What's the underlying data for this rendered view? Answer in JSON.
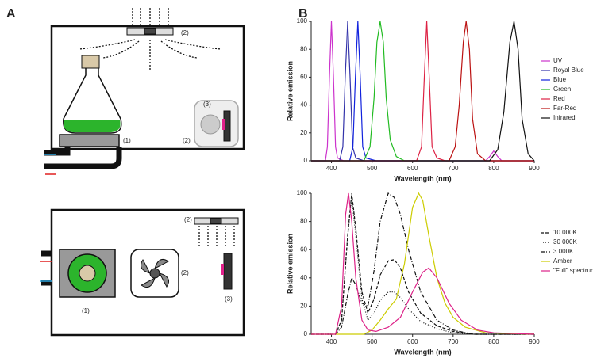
{
  "panels": {
    "a": "A",
    "b": "B"
  },
  "diagram": {
    "top": {
      "stirrer": "(1)",
      "fan": "(2)",
      "box": "(2)",
      "heater": "(3)"
    },
    "bottom": {
      "fan": "(2)",
      "stirrer": "(1)",
      "box": "(2)",
      "heater": "(3)"
    }
  },
  "chart_data": [
    {
      "type": "line",
      "xlabel": "Wavelength (nm)",
      "ylabel": "Relative emission",
      "xlim": [
        350,
        900
      ],
      "ylim": [
        0,
        100
      ],
      "xticks": [
        400,
        500,
        600,
        700,
        800,
        900
      ],
      "yticks": [
        0,
        20,
        40,
        60,
        80,
        100
      ],
      "legend": "right",
      "series": [
        {
          "name": "UV",
          "color": "#cc33cc",
          "dash": "solid",
          "x": [
            350,
            385,
            390,
            395,
            400,
            405,
            410,
            415,
            430,
            780,
            790,
            800,
            810,
            820,
            900
          ],
          "values": [
            0,
            0,
            10,
            60,
            100,
            60,
            10,
            2,
            0,
            0,
            3,
            7,
            3,
            0,
            0
          ]
        },
        {
          "name": "Royal Blue",
          "color": "#3333aa",
          "dash": "solid",
          "x": [
            350,
            420,
            428,
            434,
            440,
            446,
            452,
            460,
            480,
            900
          ],
          "values": [
            0,
            0,
            10,
            60,
            100,
            60,
            10,
            2,
            0,
            0
          ]
        },
        {
          "name": "Blue",
          "color": "#1122dd",
          "dash": "solid",
          "x": [
            350,
            445,
            453,
            459,
            465,
            471,
            477,
            485,
            510,
            900
          ],
          "values": [
            0,
            0,
            10,
            60,
            100,
            60,
            10,
            2,
            0,
            0
          ]
        },
        {
          "name": "Green",
          "color": "#22bb22",
          "dash": "solid",
          "x": [
            350,
            480,
            495,
            505,
            512,
            520,
            528,
            535,
            545,
            560,
            580,
            900
          ],
          "values": [
            0,
            0,
            10,
            45,
            85,
            100,
            85,
            45,
            15,
            3,
            0,
            0
          ]
        },
        {
          "name": "Red",
          "color": "#dd2244",
          "dash": "solid",
          "x": [
            350,
            610,
            622,
            629,
            635,
            641,
            648,
            660,
            680,
            900
          ],
          "values": [
            0,
            0,
            10,
            60,
            100,
            60,
            10,
            2,
            0,
            0
          ]
        },
        {
          "name": "Far-Red",
          "color": "#bb1111",
          "dash": "solid",
          "x": [
            350,
            690,
            705,
            715,
            725,
            732,
            740,
            748,
            760,
            780,
            900
          ],
          "values": [
            0,
            0,
            10,
            40,
            85,
            100,
            80,
            30,
            5,
            0,
            0
          ]
        },
        {
          "name": "Infrared",
          "color": "#111111",
          "dash": "solid",
          "x": [
            350,
            790,
            810,
            825,
            840,
            850,
            860,
            870,
            885,
            900
          ],
          "values": [
            0,
            0,
            8,
            35,
            85,
            100,
            80,
            30,
            5,
            0
          ]
        }
      ]
    },
    {
      "type": "line",
      "xlabel": "Wavelength (nm)",
      "ylabel": "Relative emission",
      "xlim": [
        350,
        900
      ],
      "ylim": [
        0,
        100
      ],
      "xticks": [
        400,
        500,
        600,
        700,
        800,
        900
      ],
      "yticks": [
        0,
        20,
        40,
        60,
        80,
        100
      ],
      "legend": "right",
      "series": [
        {
          "name": "10 000K",
          "color": "#111111",
          "dash": "dashed",
          "x": [
            350,
            410,
            425,
            440,
            450,
            460,
            475,
            490,
            505,
            520,
            540,
            555,
            570,
            590,
            620,
            660,
            700,
            750,
            900
          ],
          "values": [
            0,
            0,
            10,
            70,
            100,
            75,
            30,
            15,
            25,
            42,
            52,
            53,
            47,
            30,
            15,
            6,
            2,
            0,
            0
          ]
        },
        {
          "name": "30 000K",
          "color": "#111111",
          "dash": "dotted",
          "x": [
            350,
            410,
            425,
            440,
            450,
            460,
            475,
            490,
            505,
            520,
            540,
            555,
            570,
            590,
            620,
            660,
            700,
            750,
            900
          ],
          "values": [
            0,
            0,
            10,
            70,
            97,
            70,
            25,
            10,
            15,
            24,
            30,
            30,
            26,
            18,
            9,
            4,
            1,
            0,
            0
          ]
        },
        {
          "name": "3 000K",
          "color": "#111111",
          "dash": "dashdot",
          "x": [
            350,
            410,
            425,
            440,
            450,
            460,
            475,
            490,
            505,
            520,
            540,
            555,
            570,
            590,
            620,
            660,
            700,
            750,
            900
          ],
          "values": [
            0,
            0,
            5,
            28,
            40,
            35,
            22,
            20,
            45,
            80,
            100,
            97,
            85,
            60,
            30,
            10,
            3,
            0,
            0
          ]
        },
        {
          "name": "Amber",
          "color": "#cccc00",
          "dash": "solid",
          "x": [
            350,
            480,
            500,
            520,
            540,
            560,
            580,
            600,
            615,
            625,
            640,
            660,
            680,
            700,
            730,
            780,
            900
          ],
          "values": [
            0,
            0,
            3,
            10,
            18,
            25,
            50,
            90,
            100,
            95,
            70,
            40,
            22,
            12,
            5,
            1,
            0
          ]
        },
        {
          "name": "\"Full\" spectrum",
          "color": "#dd2288",
          "dash": "solid",
          "x": [
            350,
            410,
            425,
            435,
            442,
            450,
            460,
            475,
            490,
            510,
            540,
            570,
            600,
            625,
            640,
            660,
            690,
            720,
            760,
            800,
            900
          ],
          "values": [
            0,
            0,
            20,
            85,
            100,
            80,
            40,
            10,
            3,
            2,
            5,
            12,
            30,
            44,
            47,
            40,
            22,
            10,
            3,
            1,
            0
          ]
        }
      ]
    }
  ]
}
